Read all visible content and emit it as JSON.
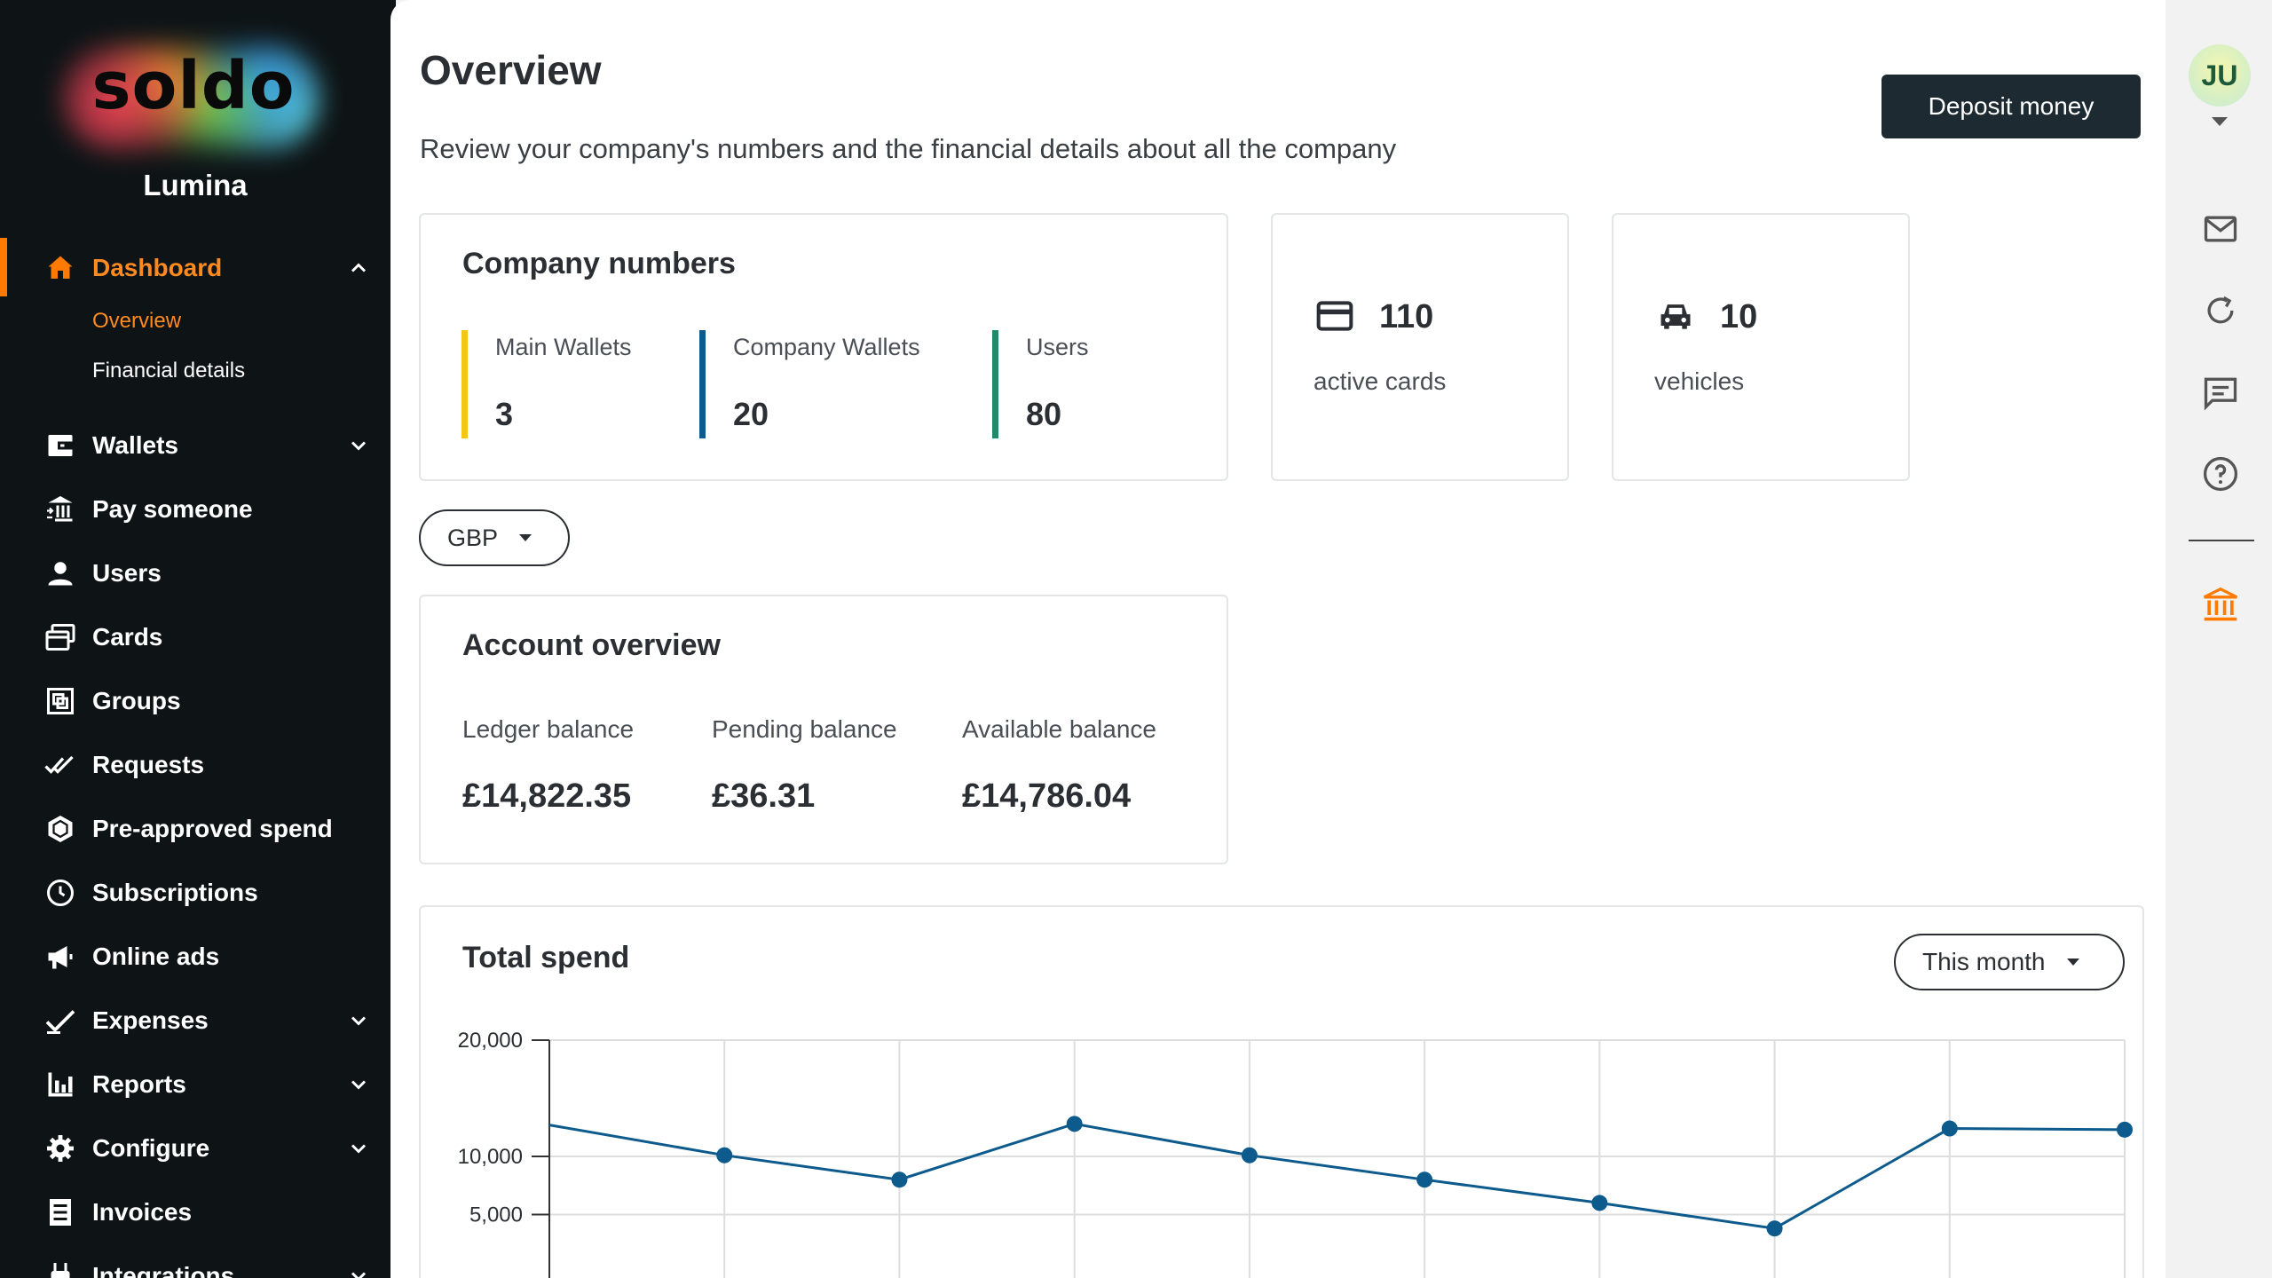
{
  "brand": {
    "logo_text": "soldo",
    "org_name": "Lumina"
  },
  "sidebar": {
    "dashboard": {
      "label": "Dashboard",
      "icon": "home-icon",
      "color": "#ff7a00"
    },
    "sub_items": [
      {
        "label": "Overview",
        "active": true
      },
      {
        "label": "Financial details",
        "active": false
      }
    ],
    "items": [
      {
        "label": "Wallets",
        "icon": "wallet-icon",
        "expandable": true
      },
      {
        "label": "Pay someone",
        "icon": "bank-transfer-icon",
        "expandable": false
      },
      {
        "label": "Users",
        "icon": "user-icon",
        "expandable": false
      },
      {
        "label": "Cards",
        "icon": "cards-icon",
        "expandable": false
      },
      {
        "label": "Groups",
        "icon": "groups-icon",
        "expandable": false
      },
      {
        "label": "Requests",
        "icon": "double-check-icon",
        "expandable": false
      },
      {
        "label": "Pre-approved spend",
        "icon": "hexagon-icon",
        "expandable": false
      },
      {
        "label": "Subscriptions",
        "icon": "clock-icon",
        "expandable": false
      },
      {
        "label": "Online ads",
        "icon": "megaphone-icon",
        "expandable": false
      },
      {
        "label": "Expenses",
        "icon": "check-icon",
        "expandable": true
      },
      {
        "label": "Reports",
        "icon": "bar-chart-icon",
        "expandable": true
      },
      {
        "label": "Configure",
        "icon": "gear-icon",
        "expandable": true
      },
      {
        "label": "Invoices",
        "icon": "invoice-icon",
        "expandable": false
      },
      {
        "label": "Integrations",
        "icon": "plug-icon",
        "expandable": true
      }
    ]
  },
  "header": {
    "title": "Overview",
    "subtitle": "Review your company's numbers and the financial details about all the company",
    "deposit_label": "Deposit money"
  },
  "company_numbers": {
    "title": "Company numbers",
    "metrics": [
      {
        "label": "Main Wallets",
        "value": "3",
        "color": "#f5c518"
      },
      {
        "label": "Company Wallets",
        "value": "20",
        "color": "#0d5a8c"
      },
      {
        "label": "Users",
        "value": "80",
        "color": "#1f8a6a"
      }
    ]
  },
  "stats": {
    "cards": {
      "value": "110",
      "label": "active cards",
      "icon": "credit-card-icon"
    },
    "vehicles": {
      "value": "10",
      "label": "vehicles",
      "icon": "car-icon"
    }
  },
  "currency": {
    "selected": "GBP"
  },
  "account_overview": {
    "title": "Account overview",
    "ledger": {
      "label": "Ledger balance",
      "value": "£14,822.35"
    },
    "pending": {
      "label": "Pending balance",
      "value": "£36.31"
    },
    "available": {
      "label": "Available balance",
      "value": "£14,786.04"
    }
  },
  "total_spend": {
    "title": "Total spend",
    "period": "This month"
  },
  "chart_data": {
    "type": "line",
    "title": "Total spend",
    "xlabel": "",
    "ylabel": "",
    "ytick_labels": [
      "20,000",
      "10,000",
      "5,000"
    ],
    "yticks": [
      20000,
      10000,
      5000
    ],
    "ylim": [
      5000,
      20000
    ],
    "x": [
      0,
      1,
      2,
      3,
      4,
      5,
      6,
      7,
      8,
      9
    ],
    "series": [
      {
        "values": [
          12700,
          10100,
          8000,
          12800,
          10100,
          8000,
          6000,
          3800,
          12400,
          12300
        ],
        "color": "#0d5a8c"
      }
    ],
    "grid": true
  },
  "rail": {
    "avatar_initials": "JU",
    "icons": [
      "mail-icon",
      "refresh-icon",
      "chat-icon",
      "help-icon",
      "bank-icon"
    ],
    "accent": "#ff7a00"
  }
}
